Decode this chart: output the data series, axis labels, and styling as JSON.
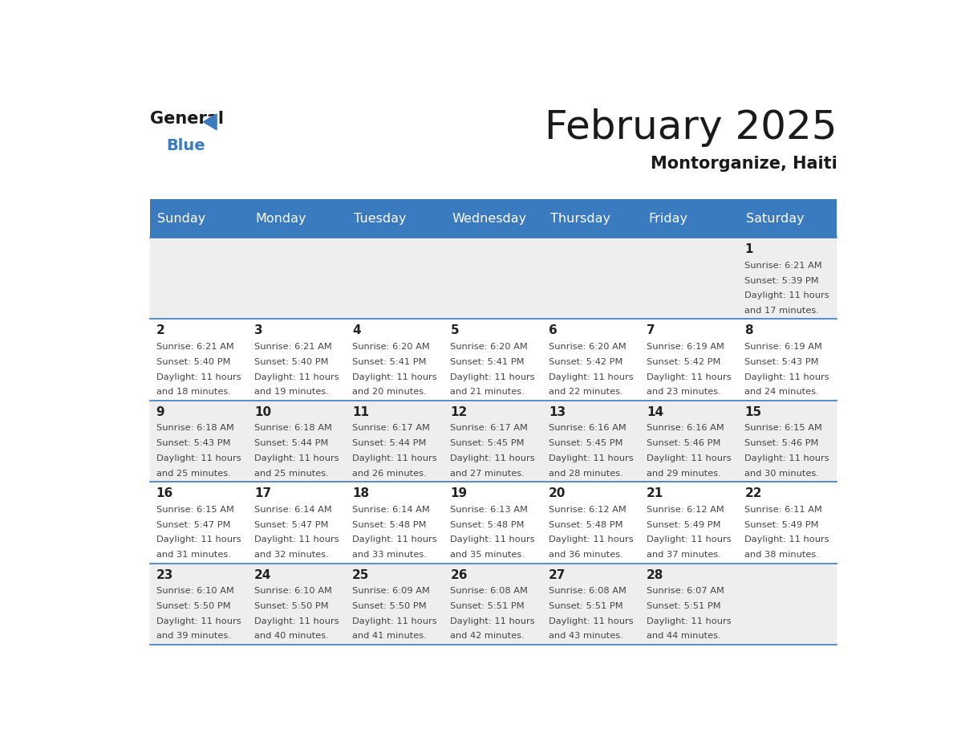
{
  "title": "February 2025",
  "subtitle": "Montorganize, Haiti",
  "header_color": "#3a7abf",
  "header_text_color": "#ffffff",
  "day_names": [
    "Sunday",
    "Monday",
    "Tuesday",
    "Wednesday",
    "Thursday",
    "Friday",
    "Saturday"
  ],
  "background_color": "#ffffff",
  "cell_bg_gray": "#eeeeee",
  "cell_bg_white": "#ffffff",
  "separator_color": "#3a7abf",
  "text_color": "#444444",
  "day_num_color": "#222222",
  "calendar_data": [
    [
      null,
      null,
      null,
      null,
      null,
      null,
      {
        "day": 1,
        "sunrise": "6:21 AM",
        "sunset": "5:39 PM",
        "daylight_h": "11 hours",
        "daylight_m": "and 17 minutes."
      }
    ],
    [
      {
        "day": 2,
        "sunrise": "6:21 AM",
        "sunset": "5:40 PM",
        "daylight_h": "11 hours",
        "daylight_m": "and 18 minutes."
      },
      {
        "day": 3,
        "sunrise": "6:21 AM",
        "sunset": "5:40 PM",
        "daylight_h": "11 hours",
        "daylight_m": "and 19 minutes."
      },
      {
        "day": 4,
        "sunrise": "6:20 AM",
        "sunset": "5:41 PM",
        "daylight_h": "11 hours",
        "daylight_m": "and 20 minutes."
      },
      {
        "day": 5,
        "sunrise": "6:20 AM",
        "sunset": "5:41 PM",
        "daylight_h": "11 hours",
        "daylight_m": "and 21 minutes."
      },
      {
        "day": 6,
        "sunrise": "6:20 AM",
        "sunset": "5:42 PM",
        "daylight_h": "11 hours",
        "daylight_m": "and 22 minutes."
      },
      {
        "day": 7,
        "sunrise": "6:19 AM",
        "sunset": "5:42 PM",
        "daylight_h": "11 hours",
        "daylight_m": "and 23 minutes."
      },
      {
        "day": 8,
        "sunrise": "6:19 AM",
        "sunset": "5:43 PM",
        "daylight_h": "11 hours",
        "daylight_m": "and 24 minutes."
      }
    ],
    [
      {
        "day": 9,
        "sunrise": "6:18 AM",
        "sunset": "5:43 PM",
        "daylight_h": "11 hours",
        "daylight_m": "and 25 minutes."
      },
      {
        "day": 10,
        "sunrise": "6:18 AM",
        "sunset": "5:44 PM",
        "daylight_h": "11 hours",
        "daylight_m": "and 25 minutes."
      },
      {
        "day": 11,
        "sunrise": "6:17 AM",
        "sunset": "5:44 PM",
        "daylight_h": "11 hours",
        "daylight_m": "and 26 minutes."
      },
      {
        "day": 12,
        "sunrise": "6:17 AM",
        "sunset": "5:45 PM",
        "daylight_h": "11 hours",
        "daylight_m": "and 27 minutes."
      },
      {
        "day": 13,
        "sunrise": "6:16 AM",
        "sunset": "5:45 PM",
        "daylight_h": "11 hours",
        "daylight_m": "and 28 minutes."
      },
      {
        "day": 14,
        "sunrise": "6:16 AM",
        "sunset": "5:46 PM",
        "daylight_h": "11 hours",
        "daylight_m": "and 29 minutes."
      },
      {
        "day": 15,
        "sunrise": "6:15 AM",
        "sunset": "5:46 PM",
        "daylight_h": "11 hours",
        "daylight_m": "and 30 minutes."
      }
    ],
    [
      {
        "day": 16,
        "sunrise": "6:15 AM",
        "sunset": "5:47 PM",
        "daylight_h": "11 hours",
        "daylight_m": "and 31 minutes."
      },
      {
        "day": 17,
        "sunrise": "6:14 AM",
        "sunset": "5:47 PM",
        "daylight_h": "11 hours",
        "daylight_m": "and 32 minutes."
      },
      {
        "day": 18,
        "sunrise": "6:14 AM",
        "sunset": "5:48 PM",
        "daylight_h": "11 hours",
        "daylight_m": "and 33 minutes."
      },
      {
        "day": 19,
        "sunrise": "6:13 AM",
        "sunset": "5:48 PM",
        "daylight_h": "11 hours",
        "daylight_m": "and 35 minutes."
      },
      {
        "day": 20,
        "sunrise": "6:12 AM",
        "sunset": "5:48 PM",
        "daylight_h": "11 hours",
        "daylight_m": "and 36 minutes."
      },
      {
        "day": 21,
        "sunrise": "6:12 AM",
        "sunset": "5:49 PM",
        "daylight_h": "11 hours",
        "daylight_m": "and 37 minutes."
      },
      {
        "day": 22,
        "sunrise": "6:11 AM",
        "sunset": "5:49 PM",
        "daylight_h": "11 hours",
        "daylight_m": "and 38 minutes."
      }
    ],
    [
      {
        "day": 23,
        "sunrise": "6:10 AM",
        "sunset": "5:50 PM",
        "daylight_h": "11 hours",
        "daylight_m": "and 39 minutes."
      },
      {
        "day": 24,
        "sunrise": "6:10 AM",
        "sunset": "5:50 PM",
        "daylight_h": "11 hours",
        "daylight_m": "and 40 minutes."
      },
      {
        "day": 25,
        "sunrise": "6:09 AM",
        "sunset": "5:50 PM",
        "daylight_h": "11 hours",
        "daylight_m": "and 41 minutes."
      },
      {
        "day": 26,
        "sunrise": "6:08 AM",
        "sunset": "5:51 PM",
        "daylight_h": "11 hours",
        "daylight_m": "and 42 minutes."
      },
      {
        "day": 27,
        "sunrise": "6:08 AM",
        "sunset": "5:51 PM",
        "daylight_h": "11 hours",
        "daylight_m": "and 43 minutes."
      },
      {
        "day": 28,
        "sunrise": "6:07 AM",
        "sunset": "5:51 PM",
        "daylight_h": "11 hours",
        "daylight_m": "and 44 minutes."
      },
      null
    ]
  ]
}
